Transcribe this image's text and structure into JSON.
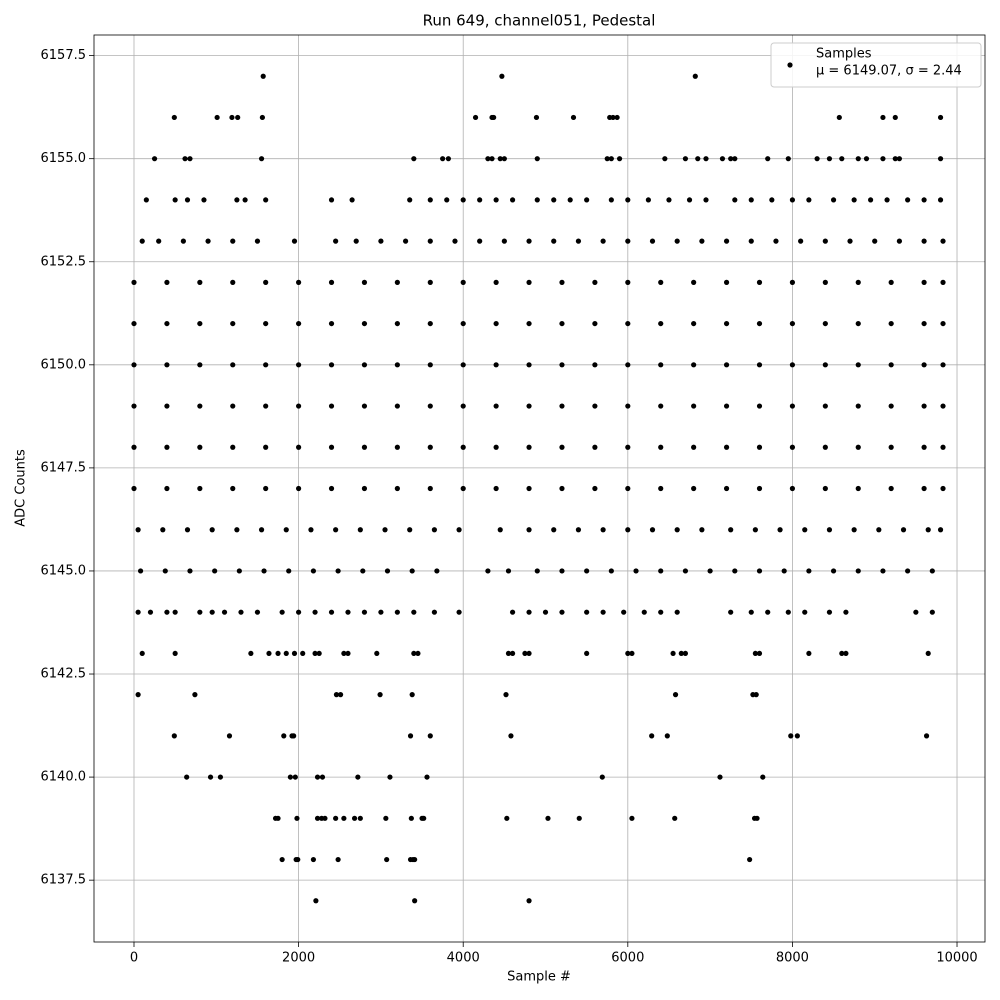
{
  "chart_data": {
    "type": "scatter",
    "title": "Run 649, channel051, Pedestal",
    "xlabel": "Sample #",
    "ylabel": "ADC Counts",
    "legend": "upper right",
    "grid": true,
    "xlim": [
      -486,
      10340
    ],
    "ylim": [
      6136,
      6158
    ],
    "xticks": [
      0,
      2000,
      4000,
      6000,
      8000,
      10000
    ],
    "yticks": [
      6137.5,
      {
        "value": 6140,
        "label": "6140.0"
      },
      6142.5,
      {
        "value": 6145,
        "label": "6145.0"
      },
      6147.5,
      {
        "value": 6150,
        "label": "6150.0"
      },
      6152.5,
      {
        "value": 6155,
        "label": "6155.0"
      },
      6157.5
    ],
    "series": [
      {
        "name": "Samples",
        "note": "μ = 6149.07, σ = 2.44",
        "color": "#000000",
        "x": [
          0,
          400,
          800,
          1200,
          1600,
          2000,
          2400,
          2800,
          3200,
          3600,
          4000,
          4400,
          4800,
          5200,
          5600,
          6000,
          6400,
          6800,
          7200,
          7600,
          8000,
          8400,
          8800,
          9200,
          9600,
          9830,
          0,
          400,
          800,
          1200,
          1600,
          2000,
          2400,
          2800,
          3200,
          3600,
          4000,
          4400,
          4800,
          5200,
          5600,
          6000,
          6400,
          6800,
          7200,
          7600,
          8000,
          8400,
          8800,
          9200,
          9600,
          9830,
          0,
          400,
          800,
          1200,
          1600,
          2000,
          2400,
          2800,
          3200,
          3600,
          4000,
          4400,
          4800,
          5200,
          5600,
          6000,
          6400,
          6800,
          7200,
          7600,
          8000,
          8400,
          8800,
          9200,
          9600,
          9830,
          0,
          400,
          800,
          1200,
          1600,
          2000,
          2400,
          2800,
          3200,
          3600,
          4000,
          4400,
          4800,
          5200,
          5600,
          6000,
          6400,
          6800,
          7200,
          7600,
          8000,
          8400,
          8800,
          9200,
          9600,
          9830,
          0,
          400,
          800,
          1200,
          1600,
          2000,
          2400,
          2800,
          3200,
          3600,
          4000,
          4400,
          4800,
          5200,
          5600,
          6000,
          6400,
          6800,
          7200,
          7600,
          8000,
          8400,
          8800,
          9200,
          9600,
          9830,
          0,
          400,
          800,
          1200,
          1600,
          2000,
          2400,
          2800,
          3200,
          3600,
          4000,
          4400,
          4800,
          5200,
          5600,
          6000,
          6400,
          6800,
          7200,
          7600,
          8000,
          8400,
          8800,
          9200,
          9600,
          9830,
          100,
          300,
          600,
          900,
          1200,
          1500,
          1950,
          2450,
          2700,
          3000,
          3300,
          3600,
          3900,
          4200,
          4500,
          4800,
          5100,
          5400,
          5700,
          6000,
          6300,
          6600,
          6900,
          7200,
          7500,
          7800,
          8100,
          8400,
          8700,
          9000,
          9300,
          9600,
          9830,
          50,
          350,
          650,
          950,
          1250,
          1550,
          1850,
          2150,
          2450,
          2750,
          3050,
          3350,
          3650,
          3950,
          4450,
          4800,
          5100,
          5400,
          5700,
          6000,
          6300,
          6600,
          6900,
          7250,
          7550,
          7850,
          8150,
          8450,
          8750,
          9050,
          9350,
          9650,
          9800,
          80,
          380,
          680,
          980,
          1280,
          1580,
          1880,
          2180,
          2480,
          2780,
          3080,
          3380,
          3680,
          4300,
          4550,
          4900,
          5200,
          5500,
          5800,
          6100,
          6400,
          6700,
          7000,
          7300,
          7600,
          7900,
          8200,
          8500,
          8800,
          9100,
          9400,
          9700,
          150,
          500,
          650,
          850,
          1250,
          1350,
          1600,
          2400,
          2650,
          3350,
          3600,
          3800,
          4000,
          4200,
          4400,
          4600,
          4900,
          5100,
          5300,
          5500,
          5800,
          6000,
          6250,
          6500,
          6750,
          6950,
          7300,
          7500,
          7750,
          8000,
          8200,
          8500,
          8750,
          8950,
          9150,
          9400,
          9600,
          9800,
          50,
          200,
          400,
          500,
          800,
          950,
          1100,
          1300,
          1500,
          1800,
          2000,
          2200,
          2400,
          2600,
          2800,
          3000,
          3200,
          3400,
          3650,
          3950,
          4600,
          4800,
          5000,
          5200,
          5500,
          5700,
          5950,
          6200,
          6400,
          6600,
          7250,
          7500,
          7700,
          7950,
          8150,
          8450,
          8650,
          9500,
          9700,
          250,
          620,
          680,
          1550,
          3400,
          3750,
          3820,
          4300,
          4350,
          4450,
          4500,
          4900,
          5750,
          5800,
          5900,
          6450,
          6700,
          6850,
          6950,
          7150,
          7250,
          7300,
          7700,
          7950,
          8300,
          8450,
          8600,
          8800,
          8900,
          9100,
          9250,
          9300,
          9800,
          100,
          500,
          1420,
          1640,
          1750,
          1850,
          1950,
          2050,
          2200,
          2250,
          2550,
          2600,
          2950,
          3400,
          3450,
          4550,
          4600,
          4750,
          4800,
          5500,
          6000,
          6050,
          6550,
          6650,
          6700,
          7550,
          7600,
          8200,
          8600,
          8650,
          9650,
          490,
          1010,
          1190,
          1260,
          1560,
          4150,
          4350,
          4370,
          4890,
          5340,
          5780,
          5820,
          5870,
          8570,
          9100,
          9250,
          9800,
          1570,
          4470,
          6820,
          50,
          740,
          2460,
          2510,
          2990,
          3380,
          4520,
          6580,
          7520,
          7560,
          490,
          1160,
          1820,
          1920,
          1940,
          3360,
          3600,
          4580,
          6290,
          6480,
          7980,
          8060,
          9630,
          640,
          930,
          1050,
          1900,
          1960,
          2230,
          2290,
          2720,
          3110,
          3560,
          5690,
          7120,
          7640,
          1720,
          1750,
          1980,
          2230,
          2280,
          2320,
          2450,
          2550,
          2680,
          2750,
          3060,
          3370,
          3500,
          3520,
          4530,
          5030,
          5410,
          6050,
          6570,
          7540,
          7570,
          1800,
          1970,
          1990,
          2180,
          2480,
          3070,
          3360,
          3390,
          3410,
          7480,
          2210,
          3410,
          4800
        ],
        "values": [
          6147,
          6147,
          6147,
          6147,
          6147,
          6147,
          6147,
          6147,
          6147,
          6147,
          6147,
          6147,
          6147,
          6147,
          6147,
          6147,
          6147,
          6147,
          6147,
          6147,
          6147,
          6147,
          6147,
          6147,
          6147,
          6147,
          6148,
          6148,
          6148,
          6148,
          6148,
          6148,
          6148,
          6148,
          6148,
          6148,
          6148,
          6148,
          6148,
          6148,
          6148,
          6148,
          6148,
          6148,
          6148,
          6148,
          6148,
          6148,
          6148,
          6148,
          6148,
          6148,
          6149,
          6149,
          6149,
          6149,
          6149,
          6149,
          6149,
          6149,
          6149,
          6149,
          6149,
          6149,
          6149,
          6149,
          6149,
          6149,
          6149,
          6149,
          6149,
          6149,
          6149,
          6149,
          6149,
          6149,
          6149,
          6149,
          6150,
          6150,
          6150,
          6150,
          6150,
          6150,
          6150,
          6150,
          6150,
          6150,
          6150,
          6150,
          6150,
          6150,
          6150,
          6150,
          6150,
          6150,
          6150,
          6150,
          6150,
          6150,
          6150,
          6150,
          6150,
          6150,
          6151,
          6151,
          6151,
          6151,
          6151,
          6151,
          6151,
          6151,
          6151,
          6151,
          6151,
          6151,
          6151,
          6151,
          6151,
          6151,
          6151,
          6151,
          6151,
          6151,
          6151,
          6151,
          6151,
          6151,
          6151,
          6151,
          6152,
          6152,
          6152,
          6152,
          6152,
          6152,
          6152,
          6152,
          6152,
          6152,
          6152,
          6152,
          6152,
          6152,
          6152,
          6152,
          6152,
          6152,
          6152,
          6152,
          6152,
          6152,
          6152,
          6152,
          6152,
          6152,
          6153,
          6153,
          6153,
          6153,
          6153,
          6153,
          6153,
          6153,
          6153,
          6153,
          6153,
          6153,
          6153,
          6153,
          6153,
          6153,
          6153,
          6153,
          6153,
          6153,
          6153,
          6153,
          6153,
          6153,
          6153,
          6153,
          6153,
          6153,
          6153,
          6153,
          6153,
          6153,
          6153,
          6146,
          6146,
          6146,
          6146,
          6146,
          6146,
          6146,
          6146,
          6146,
          6146,
          6146,
          6146,
          6146,
          6146,
          6146,
          6146,
          6146,
          6146,
          6146,
          6146,
          6146,
          6146,
          6146,
          6146,
          6146,
          6146,
          6146,
          6146,
          6146,
          6146,
          6146,
          6146,
          6146,
          6145,
          6145,
          6145,
          6145,
          6145,
          6145,
          6145,
          6145,
          6145,
          6145,
          6145,
          6145,
          6145,
          6145,
          6145,
          6145,
          6145,
          6145,
          6145,
          6145,
          6145,
          6145,
          6145,
          6145,
          6145,
          6145,
          6145,
          6145,
          6145,
          6145,
          6145,
          6145,
          6154,
          6154,
          6154,
          6154,
          6154,
          6154,
          6154,
          6154,
          6154,
          6154,
          6154,
          6154,
          6154,
          6154,
          6154,
          6154,
          6154,
          6154,
          6154,
          6154,
          6154,
          6154,
          6154,
          6154,
          6154,
          6154,
          6154,
          6154,
          6154,
          6154,
          6154,
          6154,
          6154,
          6154,
          6154,
          6154,
          6154,
          6154,
          6144,
          6144,
          6144,
          6144,
          6144,
          6144,
          6144,
          6144,
          6144,
          6144,
          6144,
          6144,
          6144,
          6144,
          6144,
          6144,
          6144,
          6144,
          6144,
          6144,
          6144,
          6144,
          6144,
          6144,
          6144,
          6144,
          6144,
          6144,
          6144,
          6144,
          6144,
          6144,
          6144,
          6144,
          6144,
          6144,
          6144,
          6144,
          6144,
          6155,
          6155,
          6155,
          6155,
          6155,
          6155,
          6155,
          6155,
          6155,
          6155,
          6155,
          6155,
          6155,
          6155,
          6155,
          6155,
          6155,
          6155,
          6155,
          6155,
          6155,
          6155,
          6155,
          6155,
          6155,
          6155,
          6155,
          6155,
          6155,
          6155,
          6155,
          6155,
          6155,
          6143,
          6143,
          6143,
          6143,
          6143,
          6143,
          6143,
          6143,
          6143,
          6143,
          6143,
          6143,
          6143,
          6143,
          6143,
          6143,
          6143,
          6143,
          6143,
          6143,
          6143,
          6143,
          6143,
          6143,
          6143,
          6143,
          6143,
          6143,
          6143,
          6143,
          6143,
          6156,
          6156,
          6156,
          6156,
          6156,
          6156,
          6156,
          6156,
          6156,
          6156,
          6156,
          6156,
          6156,
          6156,
          6156,
          6156,
          6156,
          6157,
          6157,
          6157,
          6142,
          6142,
          6142,
          6142,
          6142,
          6142,
          6142,
          6142,
          6142,
          6142,
          6141,
          6141,
          6141,
          6141,
          6141,
          6141,
          6141,
          6141,
          6141,
          6141,
          6141,
          6141,
          6141,
          6140,
          6140,
          6140,
          6140,
          6140,
          6140,
          6140,
          6140,
          6140,
          6140,
          6140,
          6140,
          6140,
          6139,
          6139,
          6139,
          6139,
          6139,
          6139,
          6139,
          6139,
          6139,
          6139,
          6139,
          6139,
          6139,
          6139,
          6139,
          6139,
          6139,
          6139,
          6139,
          6139,
          6139,
          6138,
          6138,
          6138,
          6138,
          6138,
          6138,
          6138,
          6138,
          6138,
          6138,
          6137,
          6137,
          6137
        ]
      }
    ]
  }
}
